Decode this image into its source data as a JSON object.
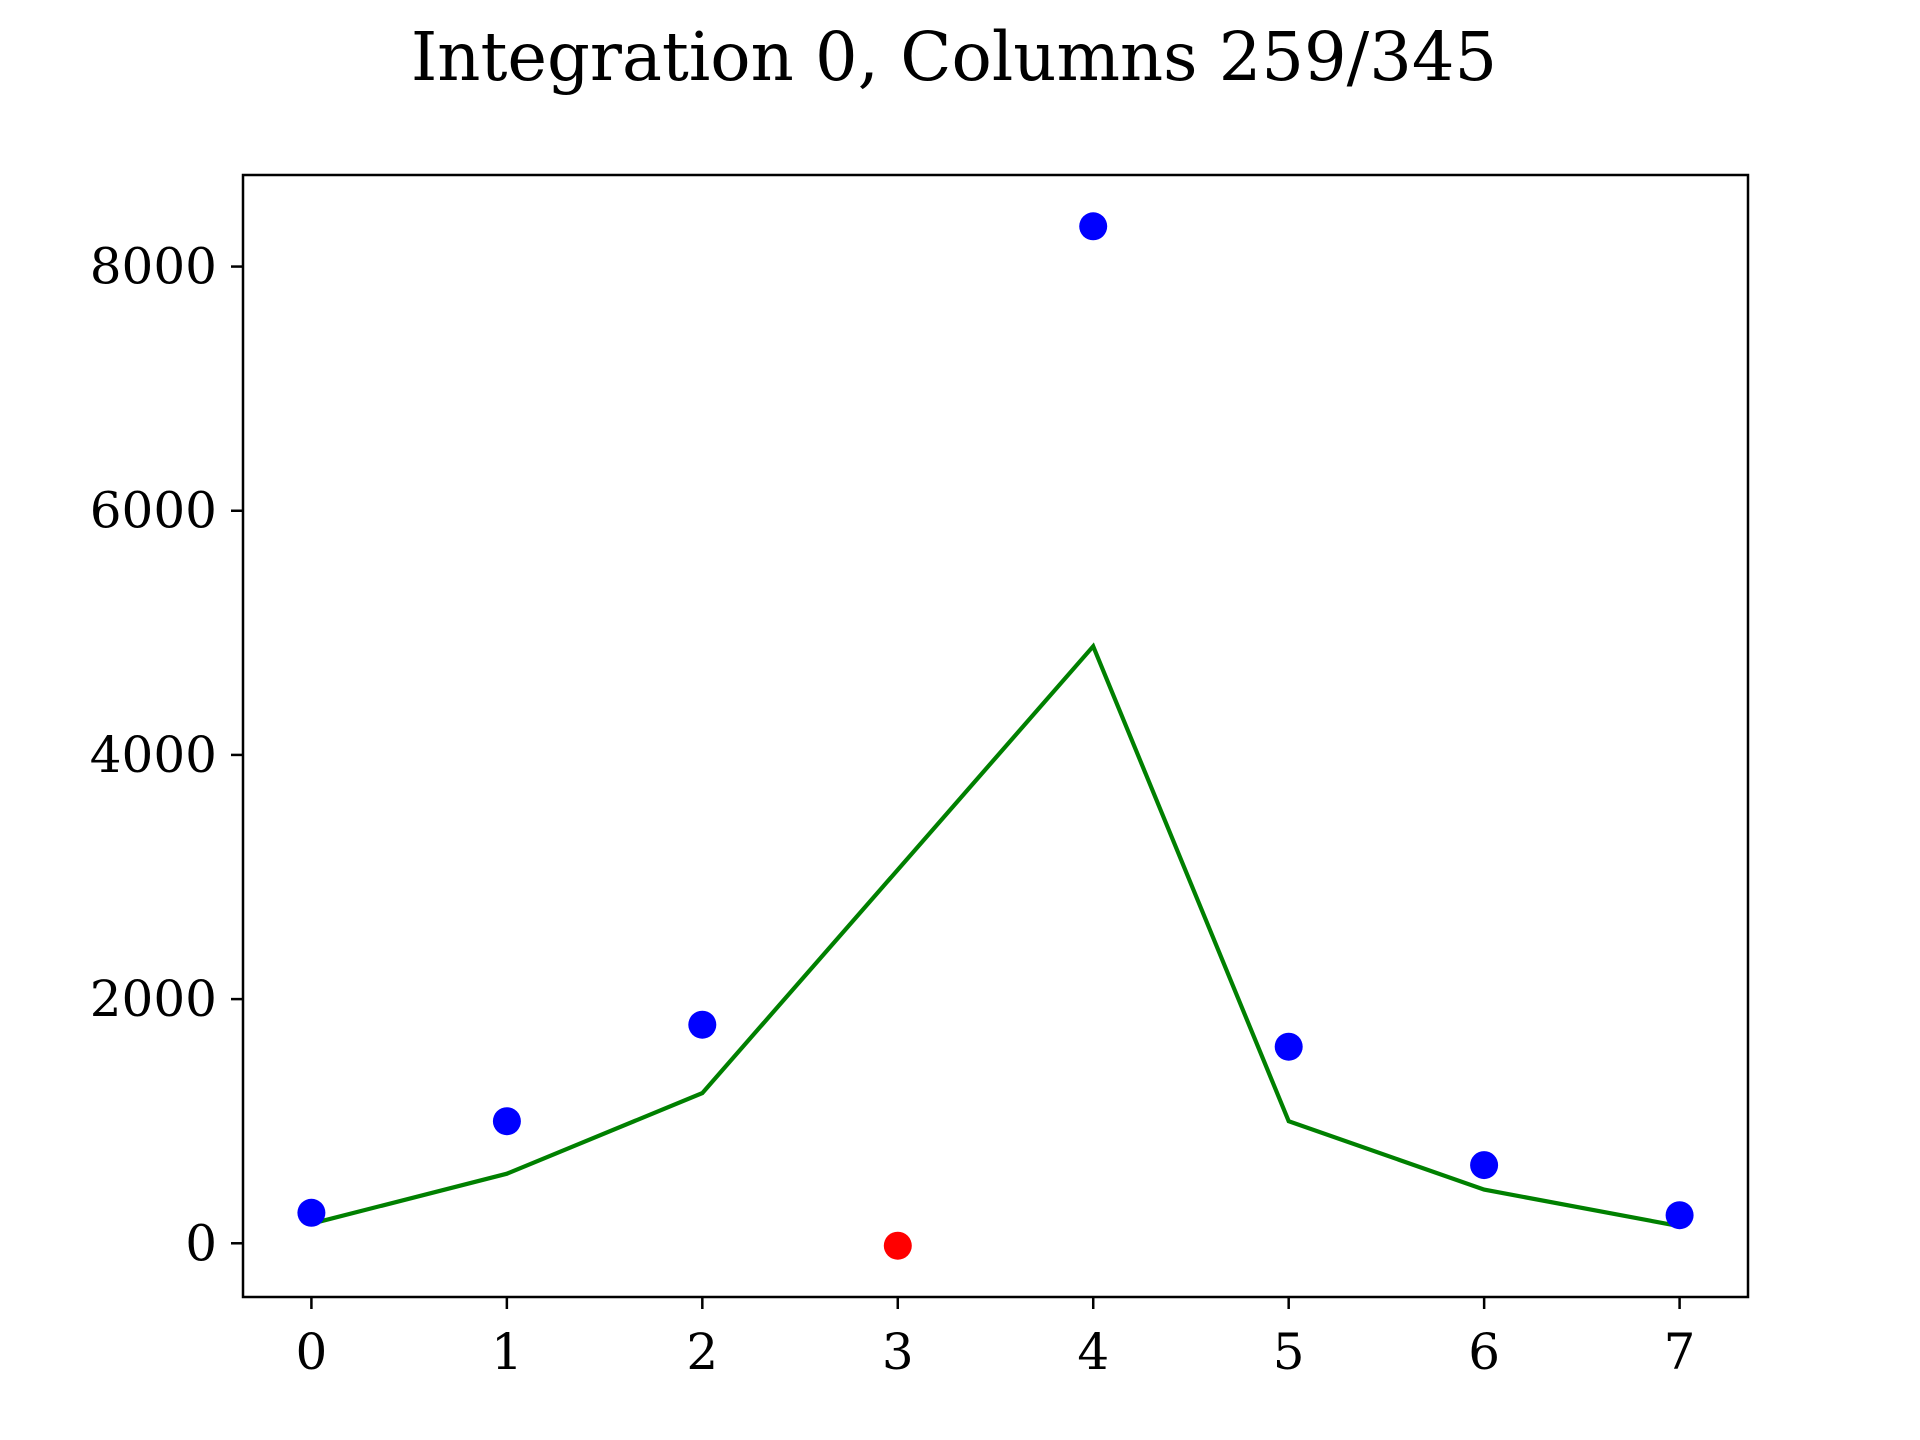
{
  "chart_data": {
    "type": "scatter",
    "title": "Integration 0, Columns 259/345",
    "xlabel": "",
    "ylabel": "",
    "xlim": [
      -0.35,
      7.35
    ],
    "ylim": [
      -440,
      8750
    ],
    "x_ticks": [
      0,
      1,
      2,
      3,
      4,
      5,
      6,
      7
    ],
    "y_ticks": [
      0,
      2000,
      4000,
      6000,
      8000
    ],
    "grid": false,
    "series": [
      {
        "kind": "points",
        "color": "#0000ff",
        "points": [
          {
            "x": 0,
            "y": 250
          },
          {
            "x": 1,
            "y": 1000
          },
          {
            "x": 2,
            "y": 1790
          },
          {
            "x": 4,
            "y": 8330
          },
          {
            "x": 5,
            "y": 1610
          },
          {
            "x": 6,
            "y": 640
          },
          {
            "x": 7,
            "y": 230
          }
        ]
      },
      {
        "kind": "points",
        "color": "#ff0000",
        "points": [
          {
            "x": 3,
            "y": -20
          }
        ]
      },
      {
        "kind": "line",
        "color": "#008000",
        "x": [
          0,
          1,
          2,
          3,
          4,
          5,
          6,
          7
        ],
        "y": [
          160,
          570,
          1230,
          3060,
          4890,
          1000,
          440,
          140
        ]
      }
    ]
  }
}
